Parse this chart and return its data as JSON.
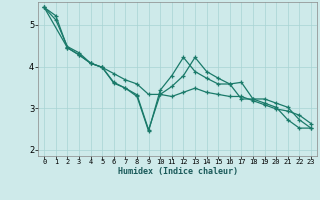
{
  "xlabel": "Humidex (Indice chaleur)",
  "xlim": [
    -0.5,
    23.5
  ],
  "ylim": [
    1.85,
    5.55
  ],
  "bg_color": "#ceeaea",
  "grid_color": "#a8d4d4",
  "line_color": "#1a7a6a",
  "yticks": [
    2,
    3,
    4,
    5
  ],
  "xticks": [
    0,
    1,
    2,
    3,
    4,
    5,
    6,
    7,
    8,
    9,
    10,
    11,
    12,
    13,
    14,
    15,
    16,
    17,
    18,
    19,
    20,
    21,
    22,
    23
  ],
  "series1_x": [
    0,
    1,
    2,
    3,
    4,
    5,
    6,
    7,
    8,
    9,
    10,
    11,
    12,
    13,
    14,
    15,
    16,
    17,
    18,
    19,
    20,
    21,
    22,
    23
  ],
  "series1_y": [
    5.42,
    5.22,
    4.45,
    4.28,
    4.08,
    3.98,
    3.62,
    3.48,
    3.32,
    2.48,
    3.33,
    3.52,
    3.78,
    4.22,
    3.88,
    3.72,
    3.58,
    3.62,
    3.22,
    3.22,
    3.12,
    3.02,
    2.72,
    2.52
  ],
  "series2_x": [
    0,
    1,
    2,
    3,
    4,
    5,
    6,
    7,
    8,
    9,
    10,
    11,
    12,
    13,
    14,
    15,
    16,
    17,
    18,
    19,
    20,
    21,
    22,
    23
  ],
  "series2_y": [
    5.42,
    5.12,
    4.48,
    4.33,
    4.08,
    3.98,
    3.83,
    3.68,
    3.58,
    3.33,
    3.33,
    3.28,
    3.38,
    3.48,
    3.38,
    3.33,
    3.28,
    3.28,
    3.18,
    3.08,
    2.98,
    2.93,
    2.83,
    2.63
  ],
  "series3_x": [
    0,
    2,
    3,
    4,
    5,
    6,
    7,
    8,
    9,
    10,
    11,
    12,
    13,
    14,
    15,
    16,
    17,
    18,
    19,
    20,
    21,
    22,
    23
  ],
  "series3_y": [
    5.42,
    4.45,
    4.28,
    4.08,
    3.98,
    3.6,
    3.48,
    3.28,
    2.45,
    3.43,
    3.78,
    4.22,
    3.88,
    3.72,
    3.58,
    3.58,
    3.22,
    3.22,
    3.12,
    3.02,
    2.72,
    2.52,
    2.52
  ]
}
